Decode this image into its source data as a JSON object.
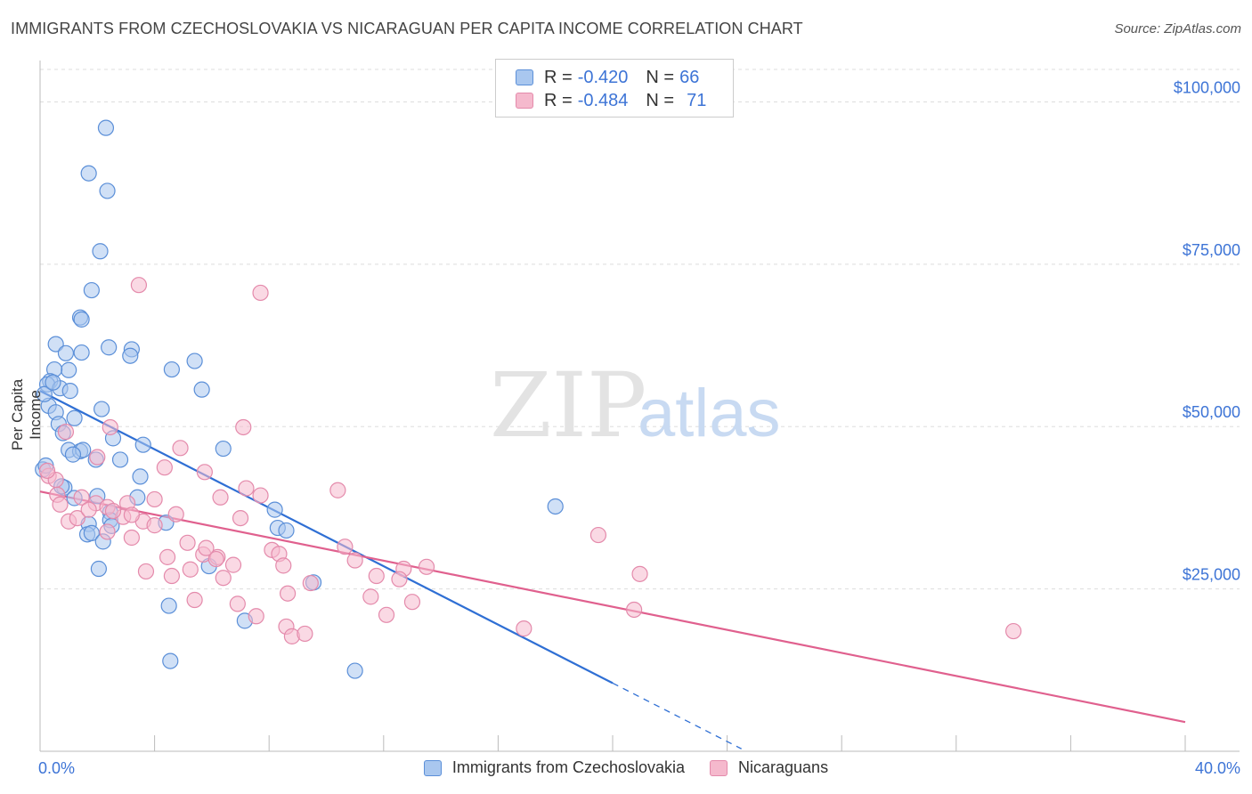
{
  "header": {
    "title": "IMMIGRANTS FROM CZECHOSLOVAKIA VS NICARAGUAN PER CAPITA INCOME CORRELATION CHART",
    "source": "Source: ZipAtlas.com"
  },
  "watermark": {
    "zip": "ZIP",
    "atlas": "atlas"
  },
  "legend_top": {
    "rows": [
      {
        "r_label": "R =",
        "r_value": "-0.420",
        "n_label": "N =",
        "n_value": "66"
      },
      {
        "r_label": "R =",
        "r_value": "-0.484",
        "n_label": "N =",
        "n_value": "71"
      }
    ]
  },
  "legend_bottom": {
    "items": [
      "Immigrants from Czechoslovakia",
      "Nicaraguans"
    ]
  },
  "colors": {
    "blue_fill": "#a9c7ef",
    "blue_stroke": "#5b8fd8",
    "blue_line": "#2f6fd4",
    "pink_fill": "#f5b9cd",
    "pink_stroke": "#e48aab",
    "pink_line": "#e0608e",
    "tick_label": "#3d74d6",
    "grid": "#dddddd"
  },
  "chart_data": {
    "type": "scatter",
    "title": "IMMIGRANTS FROM CZECHOSLOVAKIA VS NICARAGUAN PER CAPITA INCOME CORRELATION CHART",
    "xlabel": "",
    "ylabel": "Per Capita Income",
    "xlim": [
      0,
      40
    ],
    "ylim": [
      0,
      105000
    ],
    "x_tick_labels": [
      "0.0%",
      "40.0%"
    ],
    "y_ticks": [
      25000,
      50000,
      75000,
      100000
    ],
    "y_tick_labels": [
      "$25,000",
      "$50,000",
      "$75,000",
      "$100,000"
    ],
    "grid": true,
    "series": [
      {
        "name": "Immigrants from Czechoslovakia",
        "r": -0.42,
        "n": 66,
        "points": [
          [
            2.3,
            96000
          ],
          [
            1.7,
            89000
          ],
          [
            2.35,
            86300
          ],
          [
            2.1,
            77000
          ],
          [
            1.8,
            71000
          ],
          [
            1.4,
            66800
          ],
          [
            1.45,
            66500
          ],
          [
            0.55,
            62700
          ],
          [
            1.45,
            61400
          ],
          [
            2.4,
            62200
          ],
          [
            3.2,
            61900
          ],
          [
            3.15,
            60900
          ],
          [
            0.9,
            61300
          ],
          [
            5.4,
            60100
          ],
          [
            1.0,
            58700
          ],
          [
            0.5,
            58800
          ],
          [
            4.6,
            58800
          ],
          [
            0.35,
            57000
          ],
          [
            0.25,
            56500
          ],
          [
            0.7,
            55900
          ],
          [
            1.05,
            55500
          ],
          [
            5.65,
            55700
          ],
          [
            0.3,
            53200
          ],
          [
            0.55,
            52200
          ],
          [
            2.15,
            52700
          ],
          [
            0.65,
            50400
          ],
          [
            1.2,
            51300
          ],
          [
            0.8,
            49000
          ],
          [
            2.55,
            48200
          ],
          [
            3.6,
            47200
          ],
          [
            1.0,
            46400
          ],
          [
            1.4,
            46200
          ],
          [
            1.5,
            46400
          ],
          [
            6.4,
            46600
          ],
          [
            1.15,
            45700
          ],
          [
            1.95,
            44900
          ],
          [
            2.8,
            44900
          ],
          [
            0.1,
            43400
          ],
          [
            3.5,
            42300
          ],
          [
            0.85,
            40600
          ],
          [
            0.75,
            40800
          ],
          [
            1.2,
            39000
          ],
          [
            2.0,
            39300
          ],
          [
            3.4,
            39100
          ],
          [
            2.45,
            36800
          ],
          [
            8.2,
            37200
          ],
          [
            1.7,
            35000
          ],
          [
            2.45,
            35600
          ],
          [
            4.4,
            35200
          ],
          [
            2.5,
            34700
          ],
          [
            8.3,
            34400
          ],
          [
            8.6,
            34000
          ],
          [
            1.65,
            33400
          ],
          [
            1.8,
            33600
          ],
          [
            2.2,
            32300
          ],
          [
            5.9,
            28500
          ],
          [
            2.05,
            28100
          ],
          [
            18.0,
            37700
          ],
          [
            9.55,
            26000
          ],
          [
            4.5,
            22400
          ],
          [
            7.15,
            20100
          ],
          [
            4.55,
            13900
          ],
          [
            11.0,
            12400
          ],
          [
            0.15,
            55000
          ],
          [
            0.45,
            56800
          ],
          [
            0.2,
            44000
          ]
        ],
        "trend": {
          "x0": 0.0,
          "y0": 55500,
          "x1": 20.0,
          "y1": 10500,
          "dashed_to_x": 24.5
        }
      },
      {
        "name": "Nicaraguans",
        "r": -0.484,
        "n": 71,
        "points": [
          [
            3.45,
            71800
          ],
          [
            7.7,
            70600
          ],
          [
            7.1,
            49900
          ],
          [
            2.45,
            49900
          ],
          [
            0.9,
            49200
          ],
          [
            4.9,
            46700
          ],
          [
            2.0,
            45300
          ],
          [
            4.35,
            43700
          ],
          [
            0.3,
            42400
          ],
          [
            0.55,
            41800
          ],
          [
            5.75,
            43000
          ],
          [
            6.3,
            39100
          ],
          [
            7.7,
            39400
          ],
          [
            10.4,
            40200
          ],
          [
            7.2,
            40500
          ],
          [
            0.6,
            39500
          ],
          [
            1.45,
            39100
          ],
          [
            4.0,
            38800
          ],
          [
            1.95,
            38200
          ],
          [
            3.05,
            38200
          ],
          [
            2.35,
            37600
          ],
          [
            4.75,
            36500
          ],
          [
            2.9,
            36100
          ],
          [
            7.0,
            35900
          ],
          [
            1.0,
            35400
          ],
          [
            1.3,
            35900
          ],
          [
            2.55,
            37000
          ],
          [
            3.6,
            35400
          ],
          [
            4.0,
            34800
          ],
          [
            2.35,
            33800
          ],
          [
            3.2,
            32900
          ],
          [
            5.15,
            32100
          ],
          [
            10.65,
            31500
          ],
          [
            8.1,
            31000
          ],
          [
            8.35,
            30400
          ],
          [
            4.45,
            29900
          ],
          [
            5.7,
            30300
          ],
          [
            6.2,
            29900
          ],
          [
            6.15,
            29600
          ],
          [
            11.0,
            29400
          ],
          [
            8.5,
            28600
          ],
          [
            6.75,
            28700
          ],
          [
            5.25,
            28000
          ],
          [
            12.7,
            28100
          ],
          [
            13.5,
            28400
          ],
          [
            3.7,
            27700
          ],
          [
            11.75,
            27000
          ],
          [
            4.6,
            27000
          ],
          [
            12.55,
            26500
          ],
          [
            20.95,
            27300
          ],
          [
            9.45,
            25900
          ],
          [
            6.4,
            26700
          ],
          [
            8.65,
            24300
          ],
          [
            11.55,
            23800
          ],
          [
            13.0,
            23000
          ],
          [
            5.4,
            23300
          ],
          [
            6.9,
            22700
          ],
          [
            20.75,
            21800
          ],
          [
            12.1,
            21000
          ],
          [
            7.55,
            20800
          ],
          [
            8.6,
            19200
          ],
          [
            8.8,
            17700
          ],
          [
            9.25,
            18100
          ],
          [
            16.9,
            18900
          ],
          [
            34.0,
            18500
          ],
          [
            19.5,
            33300
          ],
          [
            0.25,
            43200
          ],
          [
            0.7,
            38000
          ],
          [
            1.7,
            37200
          ],
          [
            3.2,
            36400
          ],
          [
            5.8,
            31300
          ]
        ],
        "trend": {
          "x0": 0.0,
          "y0": 40000,
          "x1": 40.0,
          "y1": 4500
        }
      }
    ]
  }
}
